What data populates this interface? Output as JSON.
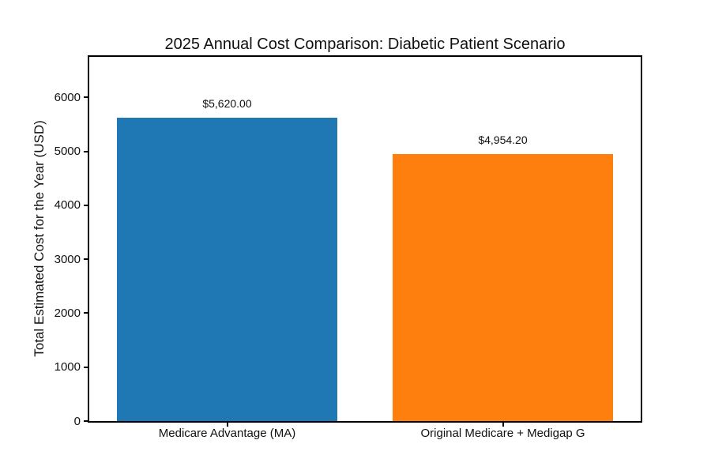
{
  "figure": {
    "background": "#ffffff",
    "text_color": "#111111",
    "spine_color": "#000000"
  },
  "chart_data": {
    "type": "bar",
    "title": "2025 Annual Cost Comparison: Diabetic Patient Scenario",
    "xlabel": "",
    "ylabel": "Total Estimated Cost for the Year (USD)",
    "categories": [
      "Medicare Advantage (MA)",
      "Original Medicare + Medigap G"
    ],
    "values": [
      5620.0,
      4954.2
    ],
    "bar_labels": [
      "$5,620.00",
      "$4,954.20"
    ],
    "bar_colors": [
      "#1f77b4",
      "#ff7f0e"
    ],
    "ylim": [
      0,
      6750
    ],
    "yticks": [
      0,
      1000,
      2000,
      3000,
      4000,
      5000,
      6000
    ],
    "grid": false,
    "legend": "none"
  }
}
